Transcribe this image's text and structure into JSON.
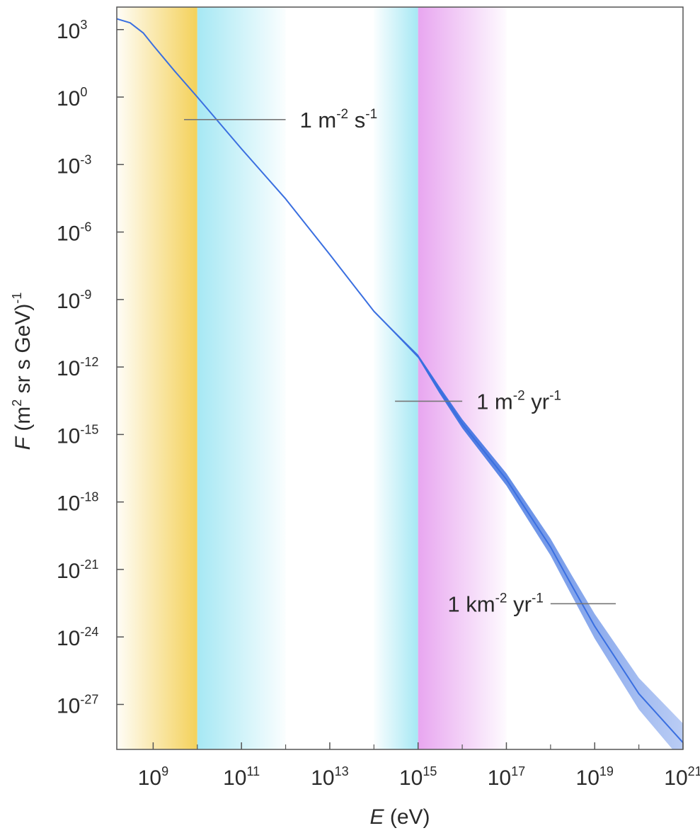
{
  "chart_data": {
    "type": "line",
    "title": "",
    "xlabel": {
      "var": "E",
      "unit": " (eV)"
    },
    "ylabel": {
      "var": "F",
      "unit_pre": " (m",
      "unit_sup1": "2",
      "unit_mid": " sr s GeV)",
      "unit_sup2": "-1"
    },
    "x_scale": "log",
    "y_scale": "log",
    "xlim": [
      150000000.0,
      1e+21
    ],
    "ylim": [
      1e-29,
      10000.0
    ],
    "x_ticks": [
      {
        "value": 1000000000.0,
        "base": "10",
        "exp": "9"
      },
      {
        "value": 100000000000.0,
        "base": "10",
        "exp": "11"
      },
      {
        "value": 10000000000000.0,
        "base": "10",
        "exp": "13"
      },
      {
        "value": 1000000000000000.0,
        "base": "10",
        "exp": "15"
      },
      {
        "value": 1e+17,
        "base": "10",
        "exp": "17"
      },
      {
        "value": 1e+19,
        "base": "10",
        "exp": "19"
      },
      {
        "value": 1e+21,
        "base": "10",
        "exp": "21"
      }
    ],
    "x_minor_ticks": [
      10000000000.0,
      1000000000000.0,
      100000000000000.0,
      1e+16,
      1e+18,
      1e+20
    ],
    "y_ticks": [
      {
        "value": 1000.0,
        "base": "10",
        "exp": "3"
      },
      {
        "value": 1.0,
        "base": "10",
        "exp": "0"
      },
      {
        "value": 0.001,
        "base": "10",
        "exp": "-3"
      },
      {
        "value": 1e-06,
        "base": "10",
        "exp": "-6"
      },
      {
        "value": 1e-09,
        "base": "10",
        "exp": "-9"
      },
      {
        "value": 1e-12,
        "base": "10",
        "exp": "-12"
      },
      {
        "value": 1e-15,
        "base": "10",
        "exp": "-15"
      },
      {
        "value": 1e-18,
        "base": "10",
        "exp": "-18"
      },
      {
        "value": 1e-21,
        "base": "10",
        "exp": "-21"
      },
      {
        "value": 1e-24,
        "base": "10",
        "exp": "-24"
      },
      {
        "value": 1e-27,
        "base": "10",
        "exp": "-27"
      }
    ],
    "series": [
      {
        "points": [
          {
            "x": 150000000.0,
            "y": 3000,
            "spread": 0
          },
          {
            "x": 300000000.0,
            "y": 2000,
            "spread": 0
          },
          {
            "x": 600000000.0,
            "y": 700,
            "spread": 0
          },
          {
            "x": 1000000000.0,
            "y": 200,
            "spread": 0
          },
          {
            "x": 3000000000.0,
            "y": 15,
            "spread": 0
          },
          {
            "x": 10000000000.0,
            "y": 1,
            "spread": 0
          },
          {
            "x": 100000000000.0,
            "y": 0.005,
            "spread": 0
          },
          {
            "x": 1000000000000.0,
            "y": 3e-05,
            "spread": 0
          },
          {
            "x": 10000000000000.0,
            "y": 1e-07,
            "spread": 0
          },
          {
            "x": 100000000000000.0,
            "y": 3e-10,
            "spread": 0.05
          },
          {
            "x": 1000000000000000.0,
            "y": 3e-12,
            "spread": 0.15
          },
          {
            "x": 3000000000000000.0,
            "y": 1e-13,
            "spread": 0.3
          },
          {
            "x": 1e+16,
            "y": 3e-15,
            "spread": 0.4
          },
          {
            "x": 1e+17,
            "y": 1e-17,
            "spread": 0.55
          },
          {
            "x": 1e+18,
            "y": 1e-20,
            "spread": 0.75
          },
          {
            "x": 3e+18,
            "y": 2e-22,
            "spread": 0.9
          },
          {
            "x": 1e+19,
            "y": 3e-24,
            "spread": 1.1
          },
          {
            "x": 1e+20,
            "y": 3e-27,
            "spread": 1.4
          },
          {
            "x": 1e+21,
            "y": 2e-29,
            "spread": 1.7
          }
        ],
        "color": "#3a6fe0"
      }
    ],
    "bands": [
      {
        "from": 150000000.0,
        "to": 10000000000.0,
        "color": "#f4d15a",
        "fade": "left"
      },
      {
        "from": 10000000000.0,
        "to": 1000000000000.0,
        "color": "#a6e8f4",
        "fade": "right"
      },
      {
        "from": 100000000000000.0,
        "to": 1000000000000000.0,
        "color": "#a6e8f4",
        "fade": "left"
      },
      {
        "from": 1000000000000000.0,
        "to": 1e+17,
        "color": "#e8a6f0",
        "fade": "right"
      }
    ],
    "annotations": [
      {
        "x_from": 5000000000.0,
        "x_to": 1000000000000.0,
        "y": 0.1,
        "label_parts": [
          "1 m",
          "-2",
          " s",
          "-1"
        ],
        "label_at": "right"
      },
      {
        "x_from": 300000000000000.0,
        "x_to": 1e+16,
        "y": 3e-14,
        "label_parts": [
          "1 m",
          "-2",
          " yr",
          "-1"
        ],
        "label_at": "right"
      },
      {
        "x_from": 1e+18,
        "x_to": 3e+19,
        "y": 3e-23,
        "label_parts": [
          "1 km",
          "-2",
          " yr",
          "-1"
        ],
        "label_at": "left"
      }
    ],
    "grid": false
  }
}
